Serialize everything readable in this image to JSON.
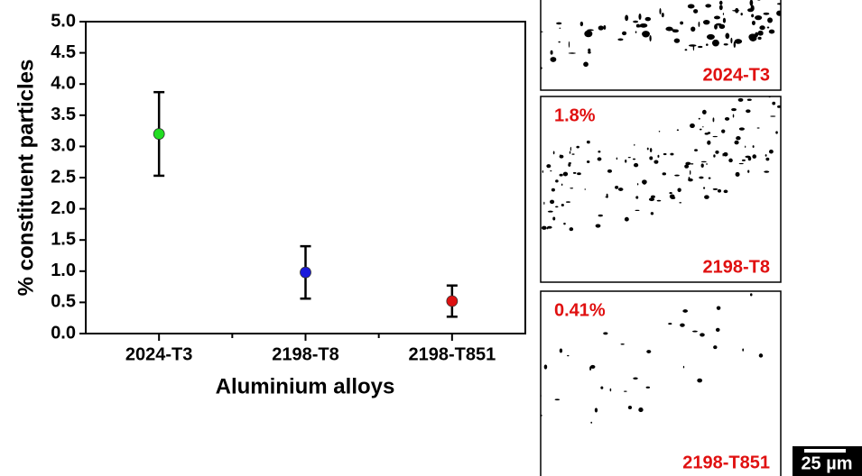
{
  "chart_data": {
    "type": "errorbar",
    "ylabel": "% constituent particles",
    "xlabel": "Aluminium alloys",
    "categories": [
      "2024-T3",
      "2198-T8",
      "2198-T851"
    ],
    "values": [
      3.2,
      0.98,
      0.52
    ],
    "errors": [
      0.67,
      0.42,
      0.25
    ],
    "colors": [
      "#22dd22",
      "#1a1adb",
      "#dd1111"
    ],
    "ylim": [
      0,
      5
    ],
    "yticks": [
      {
        "value": 0,
        "label": "0.0"
      },
      {
        "value": 0.5,
        "label": "0.5"
      },
      {
        "value": 1,
        "label": "1.0"
      },
      {
        "value": 1.5,
        "label": "1.5"
      },
      {
        "value": 2,
        "label": "2.0"
      },
      {
        "value": 2.5,
        "label": "2.5"
      },
      {
        "value": 3,
        "label": "3.0"
      },
      {
        "value": 3.5,
        "label": "3.5"
      },
      {
        "value": 4,
        "label": "4.0"
      },
      {
        "value": 4.5,
        "label": "4.5"
      },
      {
        "value": 5,
        "label": "5.0"
      }
    ]
  },
  "micrographs": [
    {
      "label": "2024-T3"
    },
    {
      "label": "2198-T8",
      "annotation": "1.8%"
    },
    {
      "label": "2198-T851",
      "annotation": "0.41%"
    }
  ],
  "scale_bar": "25 µm"
}
